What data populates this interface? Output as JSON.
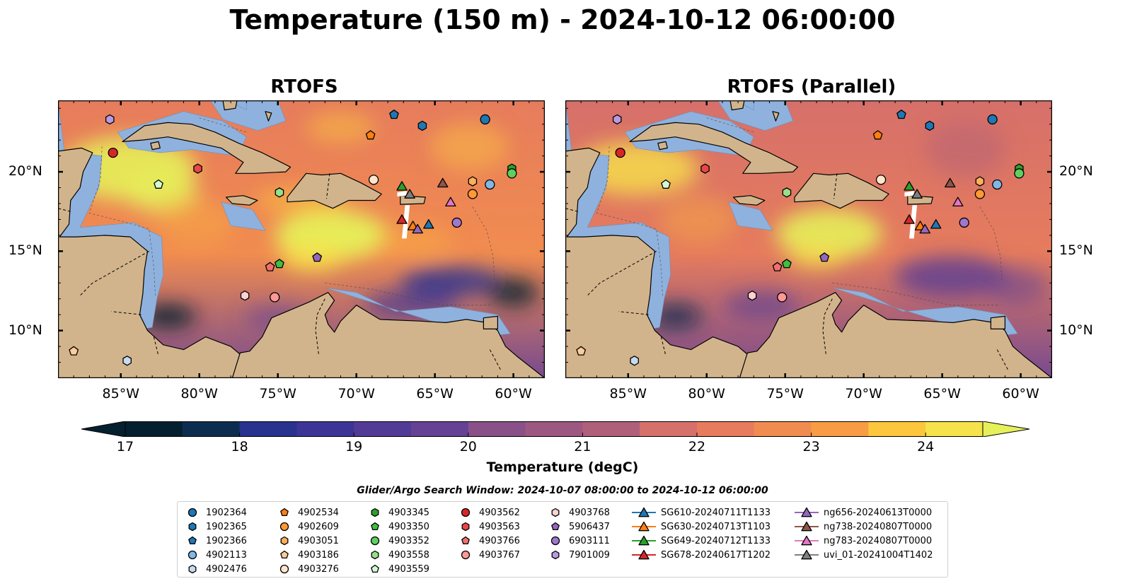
{
  "title": "Temperature (150 m) - 2024-10-12 06:00:00",
  "panels": [
    {
      "title": "RTOFS",
      "variant": "main"
    },
    {
      "title": "RTOFS (Parallel)",
      "variant": "parallel"
    }
  ],
  "map": {
    "lon_range": [
      -89,
      -58
    ],
    "lat_range": [
      7,
      24.5
    ],
    "lon_ticks": [
      {
        "value": -85,
        "label": "85°W"
      },
      {
        "value": -80,
        "label": "80°W"
      },
      {
        "value": -75,
        "label": "75°W"
      },
      {
        "value": -70,
        "label": "70°W"
      },
      {
        "value": -65,
        "label": "65°W"
      },
      {
        "value": -60,
        "label": "60°W"
      }
    ],
    "lat_ticks": [
      {
        "value": 20,
        "label": "20°N"
      },
      {
        "value": 15,
        "label": "15°N"
      },
      {
        "value": 10,
        "label": "10°N"
      }
    ],
    "colors": {
      "land": "#d2b48c",
      "shelf": "#8fb1dd",
      "coast": "#000000"
    }
  },
  "colorbar": {
    "label": "Temperature (degC)",
    "min": 17,
    "max": 24.5,
    "ticks": [
      "17",
      "18",
      "19",
      "20",
      "21",
      "22",
      "23",
      "24"
    ],
    "palette": [
      "#04202f",
      "#0d2d50",
      "#18317a",
      "#28328f",
      "#3d3596",
      "#523b97",
      "#654294",
      "#774a8f",
      "#8a5189",
      "#9d5882",
      "#b05f7b",
      "#c46773",
      "#d6706a",
      "#e67c5d",
      "#f18c50",
      "#f79c45",
      "#fbb13d",
      "#fcc73d",
      "#f6e24a",
      "#e6f05a"
    ]
  },
  "search_window": "Glider/Argo Search Window: 2024-10-07 08:00:00 to 2024-10-12 06:00:00",
  "platforms": [
    {
      "name": "1902364",
      "marker": "circle",
      "color": "#1f77b4",
      "lon": -61.8,
      "lat": 23.3
    },
    {
      "name": "1902365",
      "marker": "hexagon",
      "color": "#1f77b4",
      "lon": -65.8,
      "lat": 22.9
    },
    {
      "name": "1902366",
      "marker": "pentagon",
      "color": "#1f77b4",
      "lon": -67.6,
      "lat": 23.6
    },
    {
      "name": "4902113",
      "marker": "circle",
      "color": "#7fb8e6",
      "lon": -61.5,
      "lat": 19.2
    },
    {
      "name": "4902476",
      "marker": "hexagon",
      "color": "#c6dbef",
      "lon": -84.6,
      "lat": 8.1
    },
    {
      "name": "4902534",
      "marker": "pentagon",
      "color": "#ff7f0e",
      "lon": -69.1,
      "lat": 22.3
    },
    {
      "name": "4902609",
      "marker": "circle",
      "color": "#ff9933",
      "lon": -62.6,
      "lat": 18.6
    },
    {
      "name": "4903051",
      "marker": "hexagon",
      "color": "#ffae5c",
      "lon": -62.6,
      "lat": 19.4
    },
    {
      "name": "4903186",
      "marker": "pentagon",
      "color": "#ffcc99",
      "lon": -88.0,
      "lat": 8.7
    },
    {
      "name": "4903276",
      "marker": "circle",
      "color": "#ffe5cc",
      "lon": -68.9,
      "lat": 19.5
    },
    {
      "name": "4903345",
      "marker": "hexagon",
      "color": "#2ca02c",
      "lon": -60.1,
      "lat": 20.2
    },
    {
      "name": "4903350",
      "marker": "pentagon",
      "color": "#3fbf3f",
      "lon": -74.9,
      "lat": 14.2
    },
    {
      "name": "4903352",
      "marker": "circle",
      "color": "#5fcf5f",
      "lon": -60.1,
      "lat": 19.9
    },
    {
      "name": "4903558",
      "marker": "hexagon",
      "color": "#98df8a",
      "lon": -74.9,
      "lat": 18.7
    },
    {
      "name": "4903559",
      "marker": "pentagon",
      "color": "#d4f7d4",
      "lon": -82.6,
      "lat": 19.2
    },
    {
      "name": "4903562",
      "marker": "circle",
      "color": "#d62728",
      "lon": -85.5,
      "lat": 21.2
    },
    {
      "name": "4903563",
      "marker": "hexagon",
      "color": "#e8474a",
      "lon": -80.1,
      "lat": 20.2
    },
    {
      "name": "4903766",
      "marker": "pentagon",
      "color": "#f07070",
      "lon": -75.5,
      "lat": 14.0
    },
    {
      "name": "4903767",
      "marker": "circle",
      "color": "#ff9896",
      "lon": -75.2,
      "lat": 12.1
    },
    {
      "name": "4903768",
      "marker": "hexagon",
      "color": "#ffd1d1",
      "lon": -77.1,
      "lat": 12.2
    },
    {
      "name": "5906437",
      "marker": "pentagon",
      "color": "#9467bd",
      "lon": -72.5,
      "lat": 14.6
    },
    {
      "name": "6903111",
      "marker": "circle",
      "color": "#9f78cc",
      "lon": -63.6,
      "lat": 16.8
    },
    {
      "name": "7901009",
      "marker": "hexagon",
      "color": "#b89ae0",
      "lon": -85.7,
      "lat": 23.3
    },
    {
      "name": "SG610-20240711T1133",
      "marker": "triangle",
      "color": "#1f77b4",
      "lon": -65.4,
      "lat": 16.7
    },
    {
      "name": "SG630-20240713T1103",
      "marker": "triangle",
      "color": "#ff7f0e",
      "lon": -66.4,
      "lat": 16.6
    },
    {
      "name": "SG649-20240712T1133",
      "marker": "triangle",
      "color": "#2ca02c",
      "lon": -67.1,
      "lat": 19.1
    },
    {
      "name": "SG678-20240617T1202",
      "marker": "triangle",
      "color": "#d62728",
      "lon": -67.1,
      "lat": 17.0
    },
    {
      "name": "ng656-20240613T0000",
      "marker": "triangle",
      "color": "#9467bd",
      "lon": -66.1,
      "lat": 16.4
    },
    {
      "name": "ng738-20240807T0000",
      "marker": "triangle",
      "color": "#8c564b",
      "lon": -64.5,
      "lat": 19.3
    },
    {
      "name": "ng783-20240807T0000",
      "marker": "triangle",
      "color": "#e377c2",
      "lon": -64.0,
      "lat": 18.1
    },
    {
      "name": "uvi_01-20241004T1402",
      "marker": "triangle",
      "color": "#7f7f7f",
      "lon": -66.6,
      "lat": 18.6
    }
  ]
}
